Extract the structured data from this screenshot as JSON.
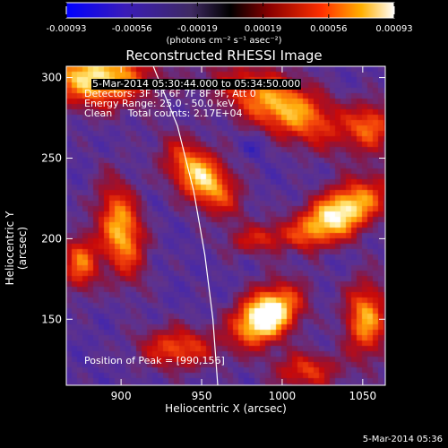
{
  "chart_data": {
    "type": "heatmap",
    "title": "Reconstructed RHESSI Image",
    "xlabel": "Heliocentric X (arcsec)",
    "ylabel": "Heliocentric Y (arcsec)",
    "xlim": [
      866,
      1064
    ],
    "ylim": [
      109,
      307
    ],
    "x_ticks": [
      900,
      950,
      1000,
      1050
    ],
    "y_ticks": [
      150,
      200,
      250,
      300
    ],
    "grid": false,
    "colorbar": {
      "position": "top",
      "ticks": [
        "-0.00093",
        "-0.00056",
        "-0.00019",
        "0.00019",
        "0.00056",
        "0.00093"
      ],
      "range": [
        -0.00093,
        0.00093
      ],
      "units": "(photons cm⁻² s⁻¹ asec⁻²)"
    },
    "annotations": {
      "time_range": "5-Mar-2014 05:30:44.000 to 05:34:50.000",
      "detectors": "Detectors: 3F 5F 6F 7F 8F 9F, Att 0",
      "energy": "Energy Range: 25.0 - 50.0 keV",
      "method": "Clean     Total counts: 2.17E+04",
      "peak": "Position of Peak = [990,156]"
    },
    "peak": [
      990,
      156
    ],
    "limb_curve": [
      [
        920,
        307
      ],
      [
        935,
        270
      ],
      [
        945,
        230
      ],
      [
        952,
        190
      ],
      [
        957,
        150
      ],
      [
        960,
        109
      ]
    ],
    "sources": [
      {
        "x": 990,
        "y": 152,
        "sx": 15,
        "sy": 10,
        "amp": 1.0,
        "angle": 35
      },
      {
        "x": 1035,
        "y": 215,
        "sx": 22,
        "sy": 10,
        "amp": 0.82,
        "angle": 30
      },
      {
        "x": 950,
        "y": 238,
        "sx": 18,
        "sy": 10,
        "amp": 0.72,
        "angle": -45
      },
      {
        "x": 900,
        "y": 205,
        "sx": 9,
        "sy": 20,
        "amp": 0.65,
        "angle": 10
      },
      {
        "x": 875,
        "y": 185,
        "sx": 8,
        "sy": 12,
        "amp": 0.5,
        "angle": 0
      },
      {
        "x": 885,
        "y": 300,
        "sx": 22,
        "sy": 12,
        "amp": 0.75,
        "angle": 0
      },
      {
        "x": 1000,
        "y": 282,
        "sx": 28,
        "sy": 12,
        "amp": 0.65,
        "angle": -25
      },
      {
        "x": 1052,
        "y": 150,
        "sx": 9,
        "sy": 16,
        "amp": 0.6,
        "angle": 0
      },
      {
        "x": 1055,
        "y": 270,
        "sx": 10,
        "sy": 10,
        "amp": 0.45,
        "angle": 0
      },
      {
        "x": 935,
        "y": 132,
        "sx": 16,
        "sy": 9,
        "amp": 0.45,
        "angle": 0
      },
      {
        "x": 1015,
        "y": 118,
        "sx": 14,
        "sy": 8,
        "amp": 0.4,
        "angle": 0
      },
      {
        "x": 985,
        "y": 200,
        "sx": 14,
        "sy": 6,
        "amp": 0.3,
        "angle": 10
      }
    ]
  },
  "footer": {
    "timestamp": "5-Mar-2014 05:36"
  }
}
